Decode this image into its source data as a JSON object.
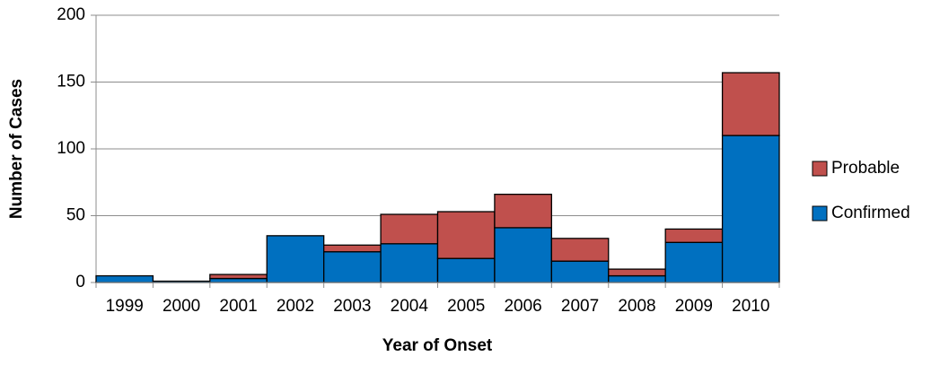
{
  "chart_data": {
    "type": "stacked_bar",
    "x_label": "Year of Onset",
    "y_label": "Number of Cases",
    "categories": [
      "1999",
      "2000",
      "2001",
      "2002",
      "2003",
      "2004",
      "2005",
      "2006",
      "2007",
      "2008",
      "2009",
      "2010"
    ],
    "series": [
      {
        "name": "Confirmed",
        "color": "#0070c0",
        "values": [
          5,
          1,
          3,
          35,
          23,
          29,
          18,
          41,
          16,
          5,
          30,
          110
        ]
      },
      {
        "name": "Probable",
        "color": "#c0504d",
        "values": [
          0,
          0,
          3,
          0,
          5,
          22,
          35,
          25,
          17,
          5,
          10,
          47
        ]
      }
    ],
    "ylim": [
      0,
      200
    ],
    "yticks": [
      0,
      50,
      100,
      150,
      200
    ],
    "grid": true,
    "legend": "right"
  }
}
